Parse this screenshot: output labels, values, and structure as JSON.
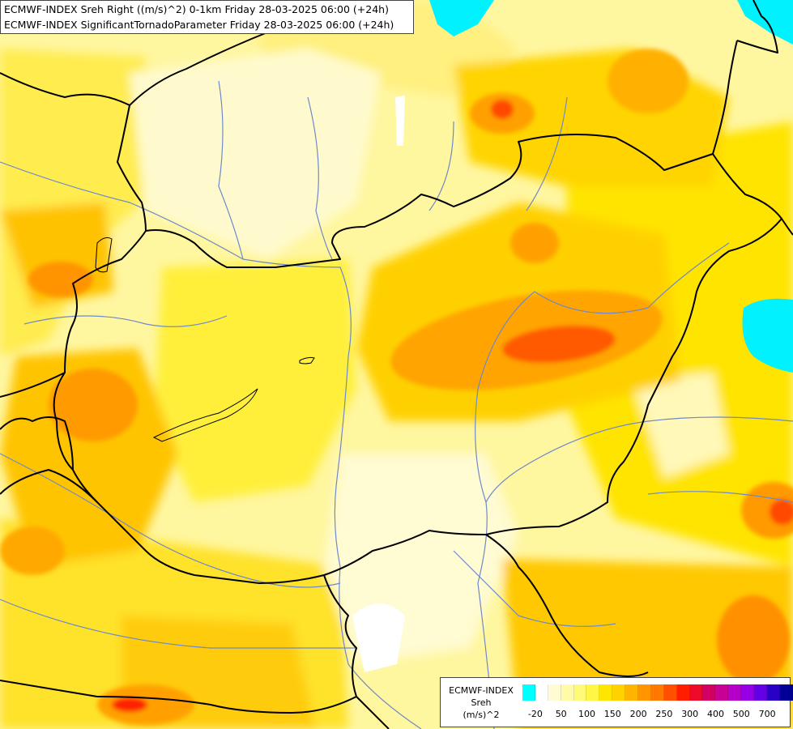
{
  "title_lines": [
    "ECMWF-INDEX Sreh Right ((m/s)^2) 0-1km Friday 28-03-2025 06:00 (+24h)",
    "ECMWF-INDEX SignificantTornadoParameter Friday 28-03-2025 06:00 (+24h)"
  ],
  "legend": {
    "title": "ECMWF-INDEX",
    "parameter": "Sreh",
    "unit": "(m/s)^2",
    "colors": [
      "#00ffff",
      "#ffffff",
      "#fffbd2",
      "#fffbaa",
      "#fffa78",
      "#fff646",
      "#ffe600",
      "#ffd200",
      "#ffb400",
      "#ff9600",
      "#ff7800",
      "#ff5000",
      "#ff1e00",
      "#ee0a28",
      "#d20064",
      "#c80096",
      "#b400c8",
      "#9600e6",
      "#6400e6",
      "#2800c8",
      "#000096"
    ],
    "ticks": [
      "-20",
      "50",
      "100",
      "150",
      "200",
      "250",
      "300",
      "400",
      "500",
      "700"
    ]
  },
  "colors": {
    "background": "#fff9a8",
    "water": "#00f2ff",
    "border": "#000000",
    "river": "#6f89c9"
  }
}
